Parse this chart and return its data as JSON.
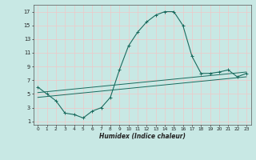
{
  "xlabel": "Humidex (Indice chaleur)",
  "xlim": [
    -0.5,
    23.5
  ],
  "ylim": [
    0.5,
    18
  ],
  "xticks": [
    0,
    1,
    2,
    3,
    4,
    5,
    6,
    7,
    8,
    9,
    10,
    11,
    12,
    13,
    14,
    15,
    16,
    17,
    18,
    19,
    20,
    21,
    22,
    23
  ],
  "yticks": [
    1,
    3,
    5,
    7,
    9,
    11,
    13,
    15,
    17
  ],
  "bg_color": "#c8e8e4",
  "grid_color": "#e8f8f8",
  "line_color": "#1a6b5e",
  "line1_x": [
    0,
    1,
    2,
    3,
    4,
    5,
    6,
    7,
    8,
    9,
    10,
    11,
    12,
    13,
    14,
    15,
    16,
    17,
    18,
    19,
    20,
    21,
    22,
    23
  ],
  "line1_y": [
    6.0,
    5.0,
    4.0,
    2.2,
    2.0,
    1.5,
    2.5,
    3.0,
    4.5,
    8.5,
    12.0,
    14.0,
    15.5,
    16.5,
    17.0,
    17.0,
    15.0,
    10.5,
    8.0,
    8.0,
    8.2,
    8.5,
    7.5,
    8.0
  ],
  "line2_x": [
    0,
    23
  ],
  "line2_y": [
    5.2,
    8.2
  ],
  "line3_x": [
    0,
    23
  ],
  "line3_y": [
    4.5,
    7.5
  ],
  "figsize": [
    3.2,
    2.0
  ],
  "dpi": 100
}
